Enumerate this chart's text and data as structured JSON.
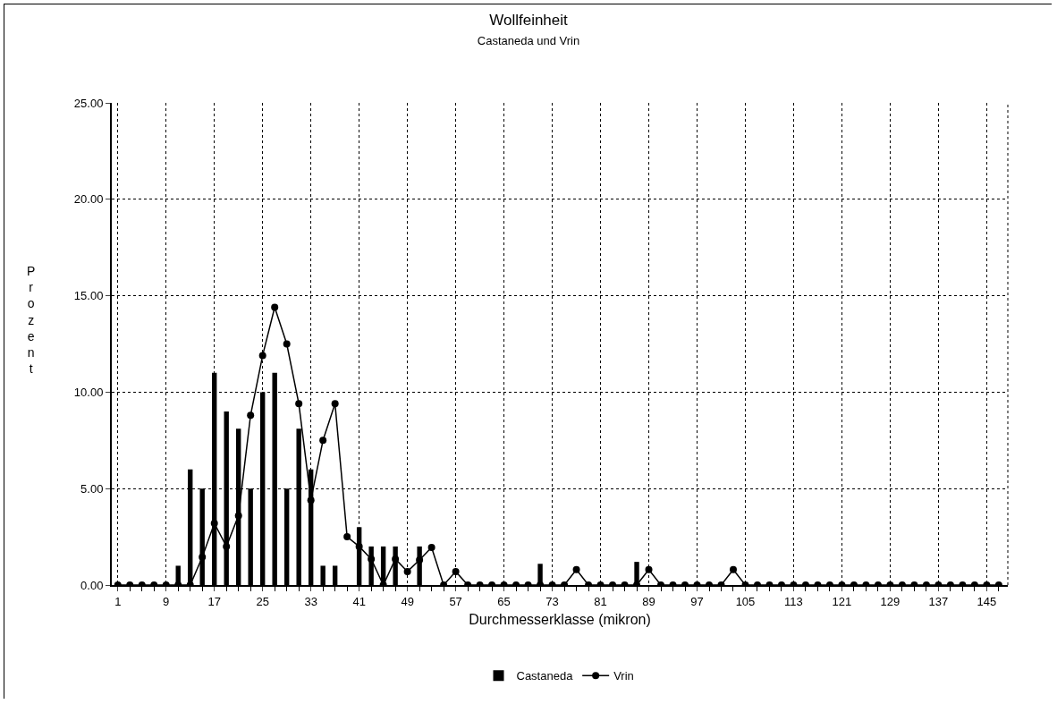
{
  "chart_data": {
    "type": "bar",
    "title": "Wollfeinheit",
    "subtitle": "Castaneda und Vrin",
    "xlabel": "Durchmesserklasse (mikron)",
    "ylabel": "Prozent",
    "x": [
      1,
      3,
      5,
      7,
      9,
      11,
      13,
      15,
      17,
      19,
      21,
      23,
      25,
      27,
      29,
      31,
      33,
      35,
      37,
      39,
      41,
      43,
      45,
      47,
      49,
      51,
      53,
      55,
      57,
      59,
      61,
      63,
      65,
      67,
      69,
      71,
      73,
      75,
      77,
      79,
      81,
      83,
      85,
      87,
      89,
      91,
      93,
      95,
      97,
      99,
      101,
      103,
      105,
      107,
      109,
      111,
      113,
      115,
      117,
      119,
      121,
      123,
      125,
      127,
      129,
      131,
      133,
      135,
      137,
      139,
      141,
      143,
      145,
      147
    ],
    "series": [
      {
        "name": "Castaneda",
        "color": "#000000",
        "values": [
          0,
          0,
          0,
          0,
          0,
          1,
          6,
          5,
          11,
          9,
          8.1,
          5,
          10,
          11,
          5,
          8.1,
          6,
          1,
          1,
          0,
          3,
          2,
          2,
          2,
          0,
          2,
          0,
          0,
          0,
          0,
          0,
          0,
          0,
          0,
          0,
          1.1,
          0,
          0,
          0,
          0,
          0,
          0,
          0,
          1.2,
          0,
          0,
          0,
          0,
          0,
          0,
          0,
          0,
          0,
          0,
          0,
          0,
          0,
          0,
          0,
          0,
          0,
          0,
          0,
          0,
          0,
          0,
          0,
          0,
          0,
          0,
          0,
          0,
          0,
          0
        ]
      },
      {
        "name": "Vrin",
        "type": "line",
        "color": "#000000",
        "marker": "circle",
        "values": [
          0,
          0,
          0,
          0,
          0,
          0,
          0,
          1.45,
          3.2,
          2,
          3.6,
          8.8,
          11.9,
          14.4,
          12.5,
          9.4,
          4.4,
          7.5,
          9.4,
          2.5,
          2,
          1.35,
          0,
          1.35,
          0.7,
          1.3,
          1.95,
          0,
          0.7,
          0,
          0,
          0,
          0,
          0,
          0,
          0,
          0,
          0,
          0.8,
          0,
          0,
          0,
          0,
          0,
          0.8,
          0,
          0,
          0,
          0,
          0,
          0,
          0.8,
          0,
          0,
          0,
          0,
          0,
          0,
          0,
          0,
          0,
          0,
          0,
          0,
          0,
          0,
          0,
          0,
          0,
          0,
          0,
          0,
          0,
          0
        ]
      }
    ],
    "xlim": [
      0,
      148.5
    ],
    "xticks": [
      1,
      9,
      17,
      25,
      33,
      41,
      49,
      57,
      65,
      73,
      81,
      89,
      97,
      105,
      113,
      121,
      129,
      137,
      145
    ],
    "ylim": [
      0,
      25
    ],
    "yticks": [
      {
        "value": 0,
        "label": "0.00"
      },
      {
        "value": 5,
        "label": "5.00"
      },
      {
        "value": 10,
        "label": "10.00"
      },
      {
        "value": 15,
        "label": "15.00"
      },
      {
        "value": 20,
        "label": "20.00"
      },
      {
        "value": 25,
        "label": "25.00"
      }
    ],
    "grid": true,
    "legend": "bottom"
  }
}
